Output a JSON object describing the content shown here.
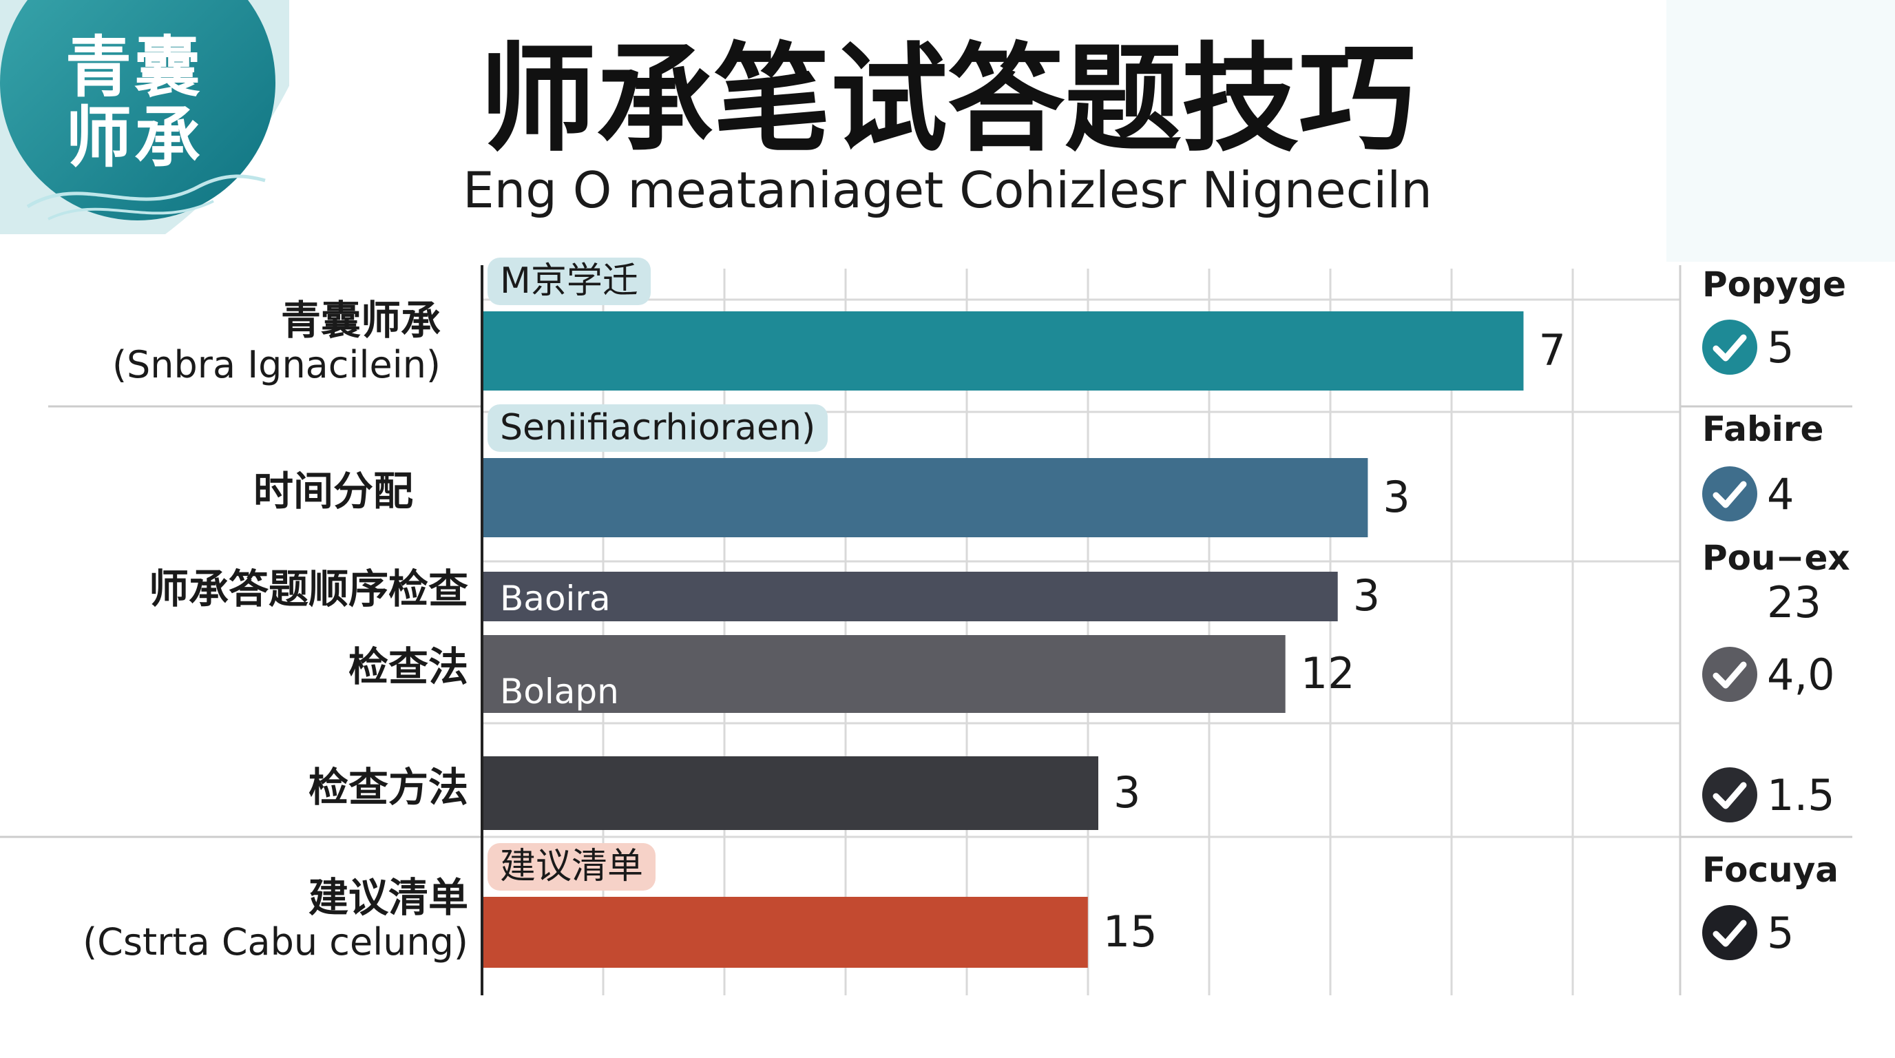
{
  "logo": {
    "line1": "青囊",
    "line2": "师承"
  },
  "title": "师承笔试答题技巧",
  "subtitle": "Eng O meataniaget Cohizlesr Nigneciln",
  "chart_data": {
    "type": "bar",
    "orientation": "horizontal",
    "title": "师承笔试答题技巧",
    "subtitle": "Eng O meataniaget Cohizlesr Nigneciln",
    "categories": [
      {
        "label": "青囊师承",
        "sublabel": "(Snbra Ignacilein)"
      },
      {
        "label": "时间分配",
        "sublabel": ""
      },
      {
        "label": "师承答题顺序检查",
        "sublabel": ""
      },
      {
        "label": "检查法",
        "sublabel": ""
      },
      {
        "label": "检查方法",
        "sublabel": ""
      },
      {
        "label": "建议清单",
        "sublabel": "(Cstrta Cabu celung)"
      }
    ],
    "values": [
      7,
      3,
      3,
      12,
      3,
      15
    ],
    "value_labels": [
      "7",
      "3",
      "3",
      "12",
      "3",
      "15"
    ],
    "bar_fraction": [
      0.795,
      0.676,
      0.653,
      0.613,
      0.47,
      0.462
    ],
    "bar_colors": [
      "#1e8a96",
      "#3f6e8c",
      "#4a4e5c",
      "#5c5c62",
      "#3a3b40",
      "#c34a30"
    ],
    "bar_tags": [
      {
        "text": "M京学迁",
        "style": "pill",
        "bg": "#cfe6ea"
      },
      {
        "text": "Seniifiacrhioraen)",
        "style": "pill",
        "bg": "#cfe6ea"
      },
      {
        "text": "Baoira",
        "style": "inbar",
        "bg": ""
      },
      {
        "text": "Bolapn",
        "style": "inbar",
        "bg": ""
      },
      {
        "text": "",
        "style": "none",
        "bg": ""
      },
      {
        "text": "建议清单",
        "style": "pill",
        "bg": "#f6d2c8"
      }
    ],
    "grid": true,
    "side_panel": [
      {
        "header": "Popyge",
        "value": "5",
        "check": true,
        "check_color": "#1e8a96"
      },
      {
        "header": "Fabire",
        "value": "4",
        "check": true,
        "check_color": "#3f6e8c"
      },
      {
        "header": "Pou−ex",
        "value": "23",
        "check": false,
        "check_color": ""
      },
      {
        "header": "",
        "value": "4,0",
        "check": true,
        "check_color": "#5c5c62"
      },
      {
        "header": "",
        "value": "1.5",
        "check": true,
        "check_color": "#2a2b30"
      },
      {
        "header": "Focuya",
        "value": "5",
        "check": true,
        "check_color": "#1e1f24"
      }
    ]
  }
}
